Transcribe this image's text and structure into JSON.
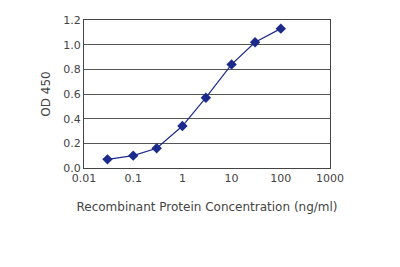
{
  "chart_data": {
    "type": "line",
    "x_label": "Recombinant Protein Concentration (ng/ml)",
    "y_label": "OD 450",
    "x": [
      0.03,
      0.1,
      0.3,
      1,
      3,
      10,
      30,
      100
    ],
    "values": [
      0.07,
      0.1,
      0.16,
      0.34,
      0.57,
      0.84,
      1.02,
      1.13
    ],
    "color": "#1c2a8c",
    "marker": "diamond",
    "log": "x",
    "xlim": [
      0.01,
      1000
    ],
    "xticks": [
      0.01,
      0.1,
      1,
      10,
      100,
      1000
    ],
    "ylim": [
      0,
      1.2
    ],
    "yticks": [
      {
        "value": 0,
        "label": "0.0"
      },
      0.2,
      0.4,
      0.6,
      0.8,
      {
        "value": 1,
        "label": "1.0"
      },
      1.2
    ],
    "grid": true
  }
}
